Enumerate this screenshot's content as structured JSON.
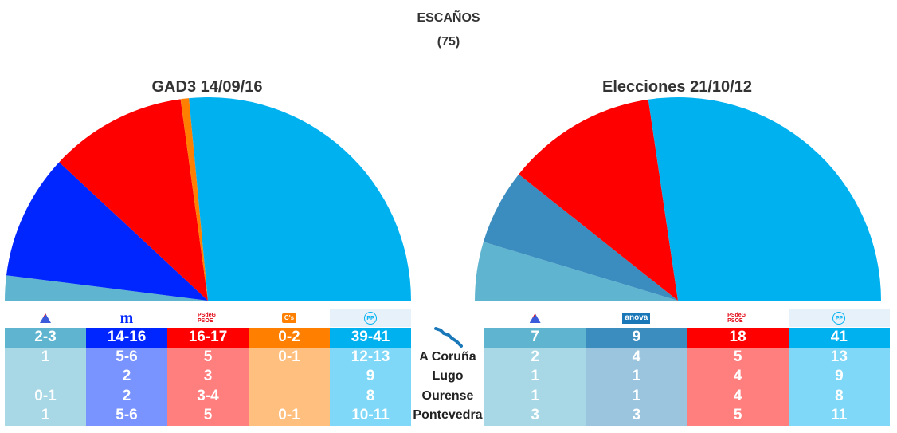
{
  "header": {
    "title": "ESCAÑOS",
    "subtitle": "(75)"
  },
  "chart_data": [
    {
      "type": "pie",
      "title": "GAD3 14/09/16",
      "series": [
        {
          "name": "En Marea",
          "values": [
            3
          ],
          "color": "#5fb4cf"
        },
        {
          "name": "BNG",
          "values": [
            15
          ],
          "color": "#0026ff"
        },
        {
          "name": "PSdeG-PSOE",
          "values": [
            16.5
          ],
          "color": "#ff0000"
        },
        {
          "name": "Cs",
          "values": [
            1
          ],
          "color": "#ff8000"
        },
        {
          "name": "PP",
          "values": [
            40
          ],
          "color": "#00b1f0"
        }
      ]
    },
    {
      "type": "pie",
      "title": "Elecciones 21/10/12",
      "series": [
        {
          "name": "En Marea",
          "values": [
            7
          ],
          "color": "#5fb4cf"
        },
        {
          "name": "AGE",
          "values": [
            9
          ],
          "color": "#3b8cbf"
        },
        {
          "name": "PSdeG-PSOE",
          "values": [
            18
          ],
          "color": "#ff0000"
        },
        {
          "name": "PP",
          "values": [
            41
          ],
          "color": "#00b1f0"
        }
      ]
    }
  ],
  "rows": [
    "A Coruña",
    "Lugo",
    "Ourense",
    "Pontevedra"
  ],
  "left_table": [
    {
      "logo": "en-marea-logo",
      "total": "2-3",
      "cells": [
        "1",
        "",
        "0-1",
        "1"
      ],
      "head_color": "#5fb4cf",
      "body_color": "#a8d8e6"
    },
    {
      "logo": "bng-logo",
      "logo_text": "m",
      "total": "14-16",
      "cells": [
        "5-6",
        "2",
        "2",
        "5-6"
      ],
      "head_color": "#0026ff",
      "body_color": "#7a94ff"
    },
    {
      "logo": "psoe-logo",
      "logo_text": "PSdeG PSOE",
      "total": "16-17",
      "cells": [
        "5",
        "3",
        "3-4",
        "5"
      ],
      "head_color": "#ff0000",
      "body_color": "#ff7f7f"
    },
    {
      "logo": "cs-logo",
      "logo_text": "C's",
      "total": "0-2",
      "cells": [
        "0-1",
        "",
        "",
        "0-1"
      ],
      "head_color": "#ff8000",
      "body_color": "#ffbf7f"
    },
    {
      "logo": "pp-logo",
      "logo_text": "PP",
      "total": "39-41",
      "cells": [
        "12-13",
        "9",
        "8",
        "10-11"
      ],
      "head_color": "#00b1f0",
      "body_color": "#7fd8f8"
    }
  ],
  "right_table": [
    {
      "logo": "en-marea-logo",
      "total": "7",
      "cells": [
        "2",
        "1",
        "1",
        "3"
      ],
      "head_color": "#5fb4cf",
      "body_color": "#a8d8e6"
    },
    {
      "logo": "age-logo",
      "logo_text": "anova",
      "total": "9",
      "cells": [
        "4",
        "1",
        "1",
        "3"
      ],
      "head_color": "#3b8cbf",
      "body_color": "#9bc5df"
    },
    {
      "logo": "psoe-logo",
      "logo_text": "PSdeG PSOE",
      "total": "18",
      "cells": [
        "5",
        "4",
        "4",
        "5"
      ],
      "head_color": "#ff0000",
      "body_color": "#ff7f7f"
    },
    {
      "logo": "pp-logo",
      "logo_text": "PP",
      "total": "41",
      "cells": [
        "13",
        "9",
        "8",
        "11"
      ],
      "head_color": "#00b1f0",
      "body_color": "#7fd8f8"
    }
  ]
}
